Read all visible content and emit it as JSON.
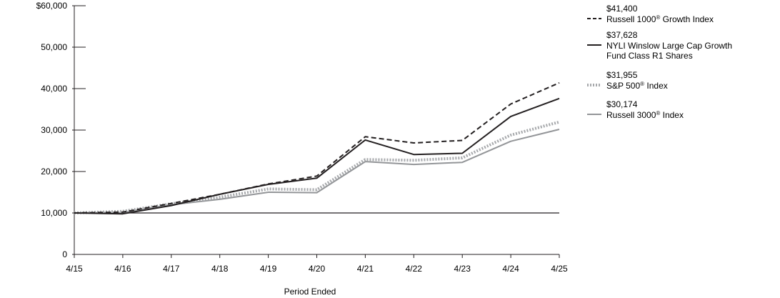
{
  "chart_data": {
    "type": "line",
    "title": "",
    "xlabel": "Period Ended",
    "ylabel": "",
    "categories": [
      "4/15",
      "4/16",
      "4/17",
      "4/18",
      "4/19",
      "4/20",
      "4/21",
      "4/22",
      "4/23",
      "4/24",
      "4/25"
    ],
    "ylim": [
      0,
      60000
    ],
    "yticks": [
      0,
      10000,
      20000,
      30000,
      40000,
      50000,
      60000
    ],
    "ytick_labels": [
      "0",
      "10,000",
      "20,000",
      "30,000",
      "40,000",
      "50,000",
      "$60,000"
    ],
    "reference_line": 10000,
    "grid": false,
    "legend_position": "right",
    "series": [
      {
        "name": "Russell 1000® Growth Index",
        "name_base": "Russell 1000",
        "name_sup": "®",
        "name_rest": " Growth Index",
        "end_label": "$41,400",
        "style": "dashed",
        "color": "#231f20",
        "values": [
          10000,
          10200,
          12300,
          14500,
          17000,
          18900,
          28400,
          26900,
          27500,
          36300,
          41400
        ]
      },
      {
        "name": "NYLI Winslow Large Cap Growth Fund Class R1 Shares",
        "name_line1": "NYLI Winslow Large Cap Growth",
        "name_line2": "Fund Class R1 Shares",
        "end_label": "$37,628",
        "style": "solid",
        "color": "#231f20",
        "values": [
          10000,
          9800,
          11800,
          14500,
          16900,
          18400,
          27600,
          24100,
          24400,
          33300,
          37628
        ]
      },
      {
        "name": "S&P 500® Index",
        "name_base": "S&P 500",
        "name_sup": "®",
        "name_rest": " Index",
        "end_label": "$31,955",
        "style": "dotted",
        "color": "#a7a9ac",
        "values": [
          10000,
          10400,
          12200,
          13800,
          15800,
          15600,
          22900,
          22700,
          23300,
          28800,
          31955
        ]
      },
      {
        "name": "Russell 3000® Index",
        "name_base": "Russell 3000",
        "name_sup": "®",
        "name_rest": " Index",
        "end_label": "$30,174",
        "style": "solid",
        "color": "#939598",
        "values": [
          10000,
          10100,
          12000,
          13300,
          15000,
          14900,
          22400,
          21700,
          22200,
          27300,
          30174
        ]
      }
    ]
  }
}
